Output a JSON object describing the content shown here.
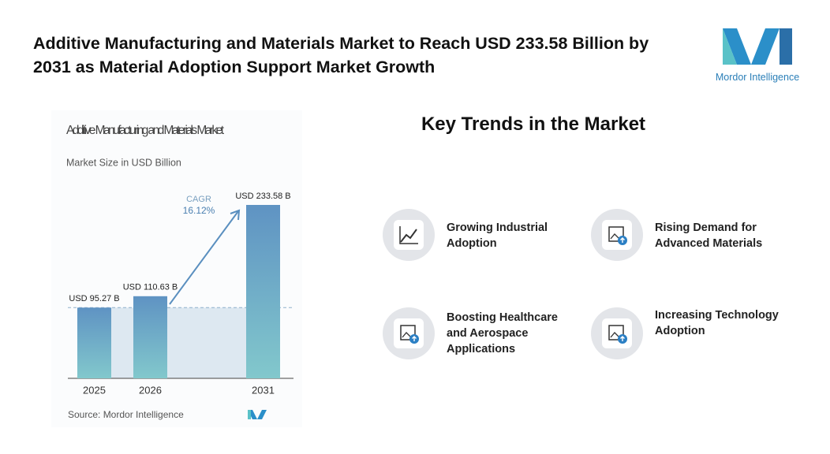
{
  "header": {
    "title": "Additive Manufacturing and Materials Market to Reach USD 233.58 Billion by 2031 as Material Adoption Support Market Growth",
    "logo": "Mordor Intelligence"
  },
  "chart_data": {
    "type": "bar",
    "title": "Additive Manufacturing and Materials Market",
    "subtitle": "Market Size in USD Billion",
    "categories": [
      "2025",
      "2026",
      "2031"
    ],
    "values": [
      95.27,
      110.63,
      233.58
    ],
    "value_labels": [
      "USD 95.27 B",
      "USD 110.63 B",
      "USD 233.58 B"
    ],
    "color": "#5f93c3",
    "cagr_label": "CAGR",
    "cagr": "16.12%",
    "source": "Source: Mordor Intelligence"
  },
  "trends": {
    "title": "Key Trends in the Market",
    "items": [
      "Growing Industrial Adoption",
      "Rising Demand for Advanced Materials",
      "Boosting Healthcare and Aerospace Applications",
      "Increasing Technology Adoption"
    ]
  }
}
